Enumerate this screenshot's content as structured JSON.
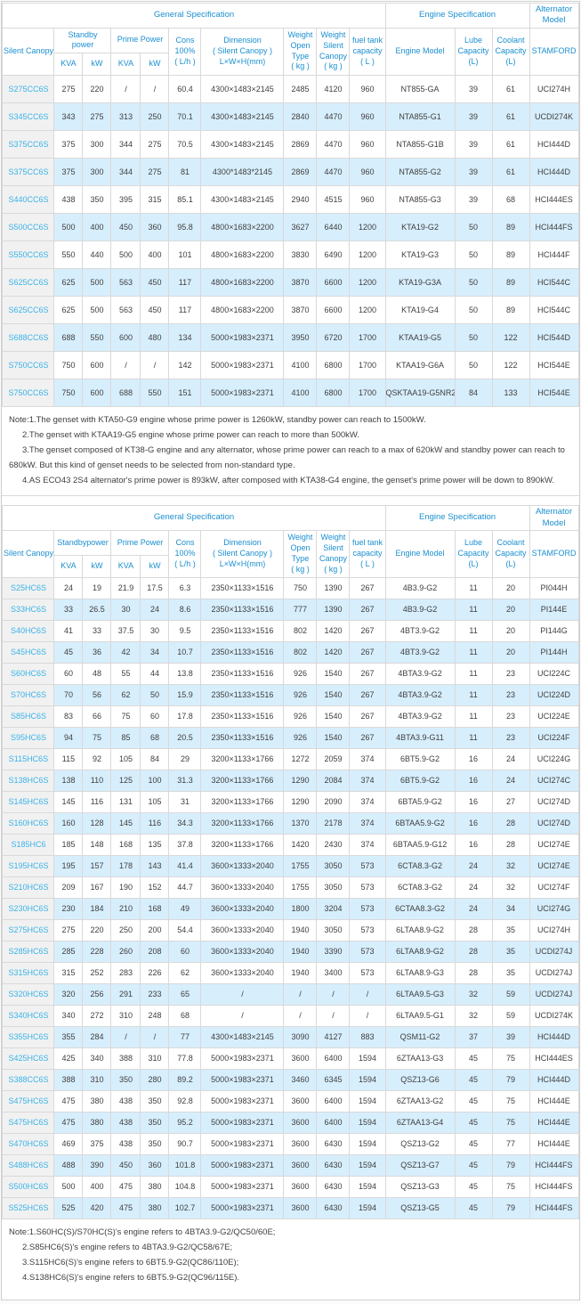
{
  "colors": {
    "header_text_blue": "#1b8fd0",
    "model_text_cyan": "#3ab3e8",
    "alt_row_blue": "#d7eefc",
    "model_col_gray": "#f1f1f1",
    "border_gray": "#d9d9d9",
    "body_text": "#404040"
  },
  "tables": [
    {
      "header": {
        "groups": [
          {
            "label": "General Specification",
            "span": 10
          },
          {
            "label": "Engine Specification",
            "span": 3
          },
          {
            "label": "Alternator\nModel",
            "span": 1
          }
        ],
        "cells": [
          {
            "label": "Silent Canopy",
            "rs": 2
          },
          {
            "label": "Standby\npower",
            "cs": 2
          },
          {
            "label": "Prime Power",
            "cs": 2
          },
          {
            "label": "Cons\n100%\n( L/h )",
            "rs": 2
          },
          {
            "label": "Dimension\n( Silent Canopy )\nL×W×H(mm)",
            "rs": 2
          },
          {
            "label": "Weight\nOpen Type\n( kg )",
            "rs": 2
          },
          {
            "label": "Weight\nSilent\nCanopy\n( kg )",
            "rs": 2
          },
          {
            "label": "fuel tank\ncapacity\n( L )",
            "rs": 2
          },
          {
            "label": "Engine Model",
            "rs": 2
          },
          {
            "label": "Lube\nCapacity\n(L)",
            "rs": 2
          },
          {
            "label": "Coolant\nCapacity\n(L)",
            "rs": 2
          },
          {
            "label": "STAMFORD",
            "rs": 2
          }
        ],
        "subs": [
          "KVA",
          "kW",
          "KVA",
          "kW"
        ]
      },
      "rows": [
        [
          "S275CC6S",
          "275",
          "220",
          "/",
          "/",
          "60.4",
          "4300×1483×2145",
          "2485",
          "4120",
          "960",
          "NT855-GA",
          "39",
          "61",
          "UCI274H"
        ],
        [
          "S345CC6S",
          "343",
          "275",
          "313",
          "250",
          "70.1",
          "4300×1483×2145",
          "2840",
          "4470",
          "960",
          "NTA855-G1",
          "39",
          "61",
          "UCDI274K"
        ],
        [
          "S375CC6S",
          "375",
          "300",
          "344",
          "275",
          "70.5",
          "4300×1483×2145",
          "2869",
          "4470",
          "960",
          "NTA855-G1B",
          "39",
          "61",
          "HCI444D"
        ],
        [
          "S375CC6S",
          "375",
          "300",
          "344",
          "275",
          "81",
          "4300*1483*2145",
          "2869",
          "4470",
          "960",
          "NTA855-G2",
          "39",
          "61",
          "HCI444D"
        ],
        [
          "S440CC6S",
          "438",
          "350",
          "395",
          "315",
          "85.1",
          "4300×1483×2145",
          "2940",
          "4515",
          "960",
          "NTA855-G3",
          "39",
          "68",
          "HCI444ES"
        ],
        [
          "S500CC6S",
          "500",
          "400",
          "450",
          "360",
          "95.8",
          "4800×1683×2200",
          "3627",
          "6440",
          "1200",
          "KTA19-G2",
          "50",
          "89",
          "HCI444FS"
        ],
        [
          "S550CC6S",
          "550",
          "440",
          "500",
          "400",
          "101",
          "4800×1683×2200",
          "3830",
          "6490",
          "1200",
          "KTA19-G3",
          "50",
          "89",
          "HCI444F"
        ],
        [
          "S625CC6S",
          "625",
          "500",
          "563",
          "450",
          "117",
          "4800×1683×2200",
          "3870",
          "6600",
          "1200",
          "KTA19-G3A",
          "50",
          "89",
          "HCI544C"
        ],
        [
          "S625CC6S",
          "625",
          "500",
          "563",
          "450",
          "117",
          "4800×1683×2200",
          "3870",
          "6600",
          "1200",
          "KTA19-G4",
          "50",
          "89",
          "HCI544C"
        ],
        [
          "S688CC6S",
          "688",
          "550",
          "600",
          "480",
          "134",
          "5000×1983×2371",
          "3950",
          "6720",
          "1700",
          "KTAA19-G5",
          "50",
          "122",
          "HCI544D"
        ],
        [
          "S750CC6S",
          "750",
          "600",
          "/",
          "/",
          "142",
          "5000×1983×2371",
          "4100",
          "6800",
          "1700",
          "KTAA19-G6A",
          "50",
          "122",
          "HCI544E"
        ],
        [
          "S750CC6S",
          "750",
          "600",
          "688",
          "550",
          "151",
          "5000×1983×2371",
          "4100",
          "6800",
          "1700",
          "QSKTAA19-G5NR2",
          "84",
          "133",
          "HCI544E"
        ]
      ],
      "notes": [
        "Note:1.The genset with KTA50-G9 engine whose prime power is 1260kW, standby power can reach to 1500kW.",
        "2.The genset with KTAA19-G5 engine whose prime power can reach to more than 500kW.",
        "3.The genset composed of KT38-G engine and any alternator, whose prime power can reach to a max of 620kW and standby power can reach to 680kW. But this kind of genset needs to be selected from non-standard type.",
        "4.AS ECO43 2S4 alternator's prime power is 893kW, after composed with KTA38-G4 engine, the genset's prime power will be down to 890kW."
      ]
    },
    {
      "header": {
        "groups": [
          {
            "label": "General Specification",
            "span": 10
          },
          {
            "label": "Engine Specification",
            "span": 3
          },
          {
            "label": "Alternator\nModel",
            "span": 1
          }
        ],
        "cells": [
          {
            "label": "Silent Canopy",
            "rs": 2
          },
          {
            "label": "Standbypower",
            "cs": 2
          },
          {
            "label": "Prime Power",
            "cs": 2
          },
          {
            "label": "Cons\n100%\n( L/h )",
            "rs": 2
          },
          {
            "label": "Dimension\n( Silent Canopy )\nL×W×H(mm)",
            "rs": 2
          },
          {
            "label": "Weight\nOpen Type\n( kg )",
            "rs": 2
          },
          {
            "label": "Weight\nSilent\nCanopy\n( kg )",
            "rs": 2
          },
          {
            "label": "fuel tank\ncapacity\n( L )",
            "rs": 2
          },
          {
            "label": "Engine Model",
            "rs": 2
          },
          {
            "label": "Lube\nCapacity\n(L)",
            "rs": 2
          },
          {
            "label": "Coolant\nCapacity\n(L)",
            "rs": 2
          },
          {
            "label": "STAMFORD",
            "rs": 2
          }
        ],
        "subs": [
          "KVA",
          "kW",
          "KVA",
          "kW"
        ]
      },
      "rows": [
        [
          "S25HC6S",
          "24",
          "19",
          "21.9",
          "17.5",
          "6.3",
          "2350×1133×1516",
          "750",
          "1390",
          "267",
          "4B3.9-G2",
          "11",
          "20",
          "PI044H"
        ],
        [
          "S33HC6S",
          "33",
          "26.5",
          "30",
          "24",
          "8.6",
          "2350×1133×1516",
          "777",
          "1390",
          "267",
          "4B3.9-G2",
          "11",
          "20",
          "PI144E"
        ],
        [
          "S40HC6S",
          "41",
          "33",
          "37.5",
          "30",
          "9.5",
          "2350×1133×1516",
          "802",
          "1420",
          "267",
          "4BT3.9-G2",
          "11",
          "20",
          "PI144G"
        ],
        [
          "S45HC6S",
          "45",
          "36",
          "42",
          "34",
          "10.7",
          "2350×1133×1516",
          "802",
          "1420",
          "267",
          "4BT3.9-G2",
          "11",
          "20",
          "PI144H"
        ],
        [
          "S60HC6S",
          "60",
          "48",
          "55",
          "44",
          "13.8",
          "2350×1133×1516",
          "926",
          "1540",
          "267",
          "4BTA3.9-G2",
          "11",
          "23",
          "UCI224C"
        ],
        [
          "S70HC6S",
          "70",
          "56",
          "62",
          "50",
          "15.9",
          "2350×1133×1516",
          "926",
          "1540",
          "267",
          "4BTA3.9-G2",
          "11",
          "23",
          "UCI224D"
        ],
        [
          "S85HC6S",
          "83",
          "66",
          "75",
          "60",
          "17.8",
          "2350×1133×1516",
          "926",
          "1540",
          "267",
          "4BTA3.9-G2",
          "11",
          "23",
          "UCI224E"
        ],
        [
          "S95HC6S",
          "94",
          "75",
          "85",
          "68",
          "20.5",
          "2350×1133×1516",
          "926",
          "1540",
          "267",
          "4BTA3.9-G11",
          "11",
          "23",
          "UCI224F"
        ],
        [
          "S115HC6S",
          "115",
          "92",
          "105",
          "84",
          "29",
          "3200×1133×1766",
          "1272",
          "2059",
          "374",
          "6BT5.9-G2",
          "16",
          "24",
          "UCI224G"
        ],
        [
          "S138HC6S",
          "138",
          "110",
          "125",
          "100",
          "31.3",
          "3200×1133×1766",
          "1290",
          "2084",
          "374",
          "6BT5.9-G2",
          "16",
          "24",
          "UCI274C"
        ],
        [
          "S145HC6S",
          "145",
          "116",
          "131",
          "105",
          "31",
          "3200×1133×1766",
          "1290",
          "2090",
          "374",
          "6BTA5.9-G2",
          "16",
          "27",
          "UCI274D"
        ],
        [
          "S160HC6S",
          "160",
          "128",
          "145",
          "116",
          "34.3",
          "3200×1133×1766",
          "1370",
          "2178",
          "374",
          "6BTAA5.9-G2",
          "16",
          "28",
          "UCI274D"
        ],
        [
          "S185HC6",
          "185",
          "148",
          "168",
          "135",
          "37.8",
          "3200×1133×1766",
          "1420",
          "2430",
          "374",
          "6BTAA5.9-G12",
          "16",
          "28",
          "UCI274E"
        ],
        [
          "S195HC6S",
          "195",
          "157",
          "178",
          "143",
          "41.4",
          "3600×1333×2040",
          "1755",
          "3050",
          "573",
          "6CTA8.3-G2",
          "24",
          "32",
          "UCI274E"
        ],
        [
          "S210HC6S",
          "209",
          "167",
          "190",
          "152",
          "44.7",
          "3600×1333×2040",
          "1755",
          "3050",
          "573",
          "6CTA8.3-G2",
          "24",
          "32",
          "UCI274F"
        ],
        [
          "S230HC6S",
          "230",
          "184",
          "210",
          "168",
          "49",
          "3600×1333×2040",
          "1800",
          "3204",
          "573",
          "6CTAA8.3-G2",
          "24",
          "34",
          "UCI274G"
        ],
        [
          "S275HC6S",
          "275",
          "220",
          "250",
          "200",
          "54.4",
          "3600×1333×2040",
          "1940",
          "3050",
          "573",
          "6LTAA8.9-G2",
          "28",
          "35",
          "UCI274H"
        ],
        [
          "S285HC6S",
          "285",
          "228",
          "260",
          "208",
          "60",
          "3600×1333×2040",
          "1940",
          "3390",
          "573",
          "6LTAA8.9-G2",
          "28",
          "35",
          "UCDI274J"
        ],
        [
          "S315HC6S",
          "315",
          "252",
          "283",
          "226",
          "62",
          "3600×1333×2040",
          "1940",
          "3400",
          "573",
          "6LTAA8.9-G3",
          "28",
          "35",
          "UCDI274J"
        ],
        [
          "S320HC6S",
          "320",
          "256",
          "291",
          "233",
          "65",
          "/",
          "/",
          "/",
          "/",
          "6LTAA9.5-G3",
          "32",
          "59",
          "UCDI274J"
        ],
        [
          "S340HC6S",
          "340",
          "272",
          "310",
          "248",
          "68",
          "/",
          "/",
          "/",
          "/",
          "6LTAA9.5-G1",
          "32",
          "59",
          "UCDI274K"
        ],
        [
          "S355HC6S",
          "355",
          "284",
          "/",
          "/",
          "77",
          "4300×1483×2145",
          "3090",
          "4127",
          "883",
          "QSM11-G2",
          "37",
          "39",
          "HCI444D"
        ],
        [
          "S425HC6S",
          "425",
          "340",
          "388",
          "310",
          "77.8",
          "5000×1983×2371",
          "3600",
          "6400",
          "1594",
          "6ZTAA13-G3",
          "45",
          "75",
          "HCI444ES"
        ],
        [
          "S388CC6S",
          "388",
          "310",
          "350",
          "280",
          "89.2",
          "5000×1983×2371",
          "3460",
          "6345",
          "1594",
          "QSZ13-G6",
          "45",
          "79",
          "HCI444D"
        ],
        [
          "S475HC6S",
          "475",
          "380",
          "438",
          "350",
          "92.8",
          "5000×1983×2371",
          "3600",
          "6400",
          "1594",
          "6ZTAA13-G2",
          "45",
          "75",
          "HCI444E"
        ],
        [
          "S475HC6S",
          "475",
          "380",
          "438",
          "350",
          "95.2",
          "5000×1983×2371",
          "3600",
          "6400",
          "1594",
          "6ZTAA13-G4",
          "45",
          "75",
          "HCI444E"
        ],
        [
          "S470HC6S",
          "469",
          "375",
          "438",
          "350",
          "90.7",
          "5000×1983×2371",
          "3600",
          "6430",
          "1594",
          "QSZ13-G2",
          "45",
          "77",
          "HCI444E"
        ],
        [
          "S488HC6S",
          "488",
          "390",
          "450",
          "360",
          "101.8",
          "5000×1983×2371",
          "3600",
          "6430",
          "1594",
          "QSZ13-G7",
          "45",
          "79",
          "HCI444FS"
        ],
        [
          "S500HC6S",
          "500",
          "400",
          "475",
          "380",
          "104.8",
          "5000×1983×2371",
          "3600",
          "6430",
          "1594",
          "QSZ13-G3",
          "45",
          "75",
          "HCI444FS"
        ],
        [
          "S525HC6S",
          "525",
          "420",
          "475",
          "380",
          "102.7",
          "5000×1983×2371",
          "3600",
          "6430",
          "1594",
          "QSZ13-G5",
          "45",
          "79",
          "HCI444FS"
        ]
      ],
      "notes": [
        "Note:1.S60HC(S)/S70HC(S)'s engine refers to 4BTA3.9-G2/QC50/60E;",
        "2.S85HC6(S)'s engine refers to 4BTA3.9-G2/QC58/67E;",
        "3.S115HC6(S)'s engine refers to 6BT5.9-G2(QC86/110E);",
        "4.S138HC6(S)'s engine refers to 6BT5.9-G2(QC96/115E)."
      ]
    }
  ]
}
